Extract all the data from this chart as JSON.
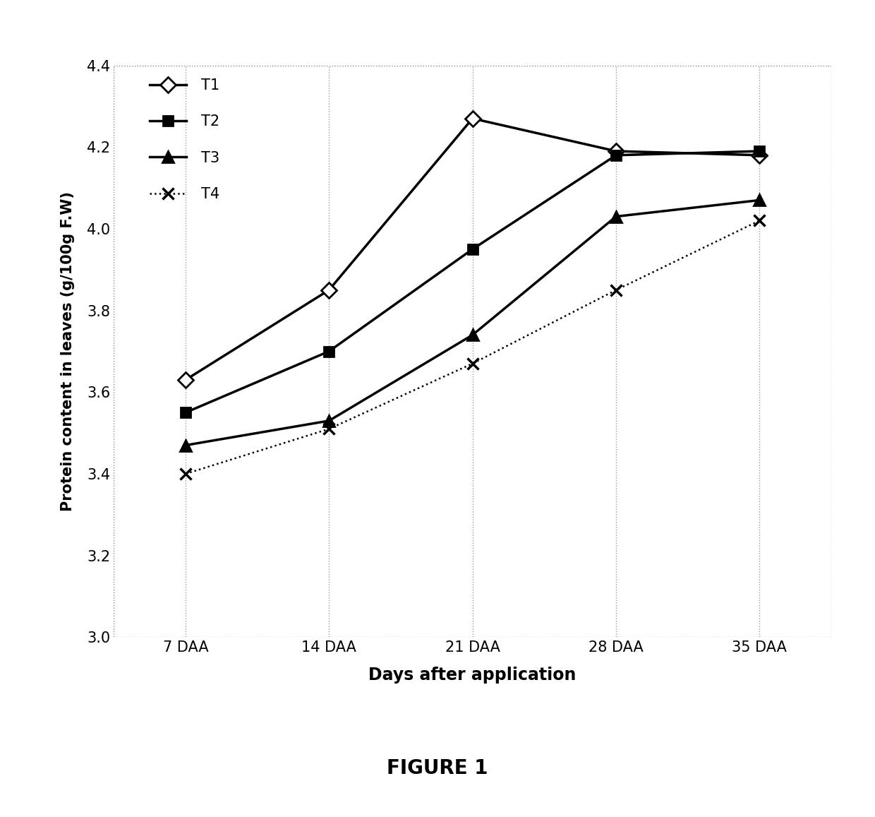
{
  "x_labels": [
    "7 DAA",
    "14 DAA",
    "21 DAA",
    "28 DAA",
    "35 DAA"
  ],
  "x_values": [
    1,
    2,
    3,
    4,
    5
  ],
  "series": {
    "T1": [
      3.63,
      3.85,
      4.27,
      4.19,
      4.18
    ],
    "T2": [
      3.55,
      3.7,
      3.95,
      4.18,
      4.19
    ],
    "T3": [
      3.47,
      3.53,
      3.74,
      4.03,
      4.07
    ],
    "T4": [
      3.4,
      3.51,
      3.67,
      3.85,
      4.02
    ]
  },
  "xlabel": "Days after application",
  "ylabel": "Protein content in leaves (g/100g F.W)",
  "ylim": [
    3.0,
    4.4
  ],
  "yticks": [
    3.0,
    3.2,
    3.4,
    3.6,
    3.8,
    4.0,
    4.2,
    4.4
  ],
  "figure_label": "FIGURE 1",
  "background_color": "#ffffff"
}
